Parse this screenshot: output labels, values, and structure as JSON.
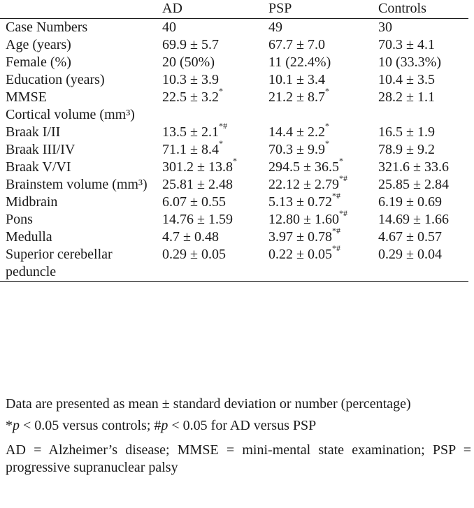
{
  "table": {
    "headers": [
      "",
      "AD",
      "PSP",
      "Controls"
    ],
    "rows": [
      {
        "label": "Case Numbers",
        "ad": "40",
        "ad_sup": "",
        "psp": "49",
        "psp_sup": "",
        "ctrl": "30"
      },
      {
        "label": "Age (years)",
        "ad": "69.9 ± 5.7",
        "ad_sup": "",
        "psp": "67.7 ± 7.0",
        "psp_sup": "",
        "ctrl": "70.3 ± 4.1"
      },
      {
        "label": "Female (%)",
        "ad": "20 (50%)",
        "ad_sup": "",
        "psp": "11 (22.4%)",
        "psp_sup": "",
        "ctrl": "10 (33.3%)"
      },
      {
        "label": "Education (years)",
        "ad": "10.3 ± 3.9",
        "ad_sup": "",
        "psp": "10.1 ± 3.4",
        "psp_sup": "",
        "ctrl": "10.4 ± 3.5"
      },
      {
        "label": "MMSE",
        "ad": "22.5 ± 3.2",
        "ad_sup": "*",
        "psp": "21.2 ± 8.7",
        "psp_sup": "*",
        "ctrl": "28.2 ± 1.1"
      },
      {
        "label": "Cortical volume (mm³)",
        "ad": "",
        "ad_sup": "",
        "psp": "",
        "psp_sup": "",
        "ctrl": ""
      },
      {
        "label": "Braak I/II",
        "ad": "13.5 ± 2.1",
        "ad_sup": "*#",
        "psp": "14.4 ± 2.2",
        "psp_sup": "*",
        "ctrl": "16.5 ± 1.9"
      },
      {
        "label": "Braak III/IV",
        "ad": "71.1 ± 8.4",
        "ad_sup": "*",
        "psp": "70.3 ± 9.9",
        "psp_sup": "*",
        "ctrl": "78.9 ± 9.2"
      },
      {
        "label": "Braak V/VI",
        "ad": "301.2 ± 13.8",
        "ad_sup": "*",
        "psp": "294.5 ± 36.5",
        "psp_sup": "*",
        "ctrl": "321.6 ± 33.6"
      },
      {
        "label": "Brainstem volume (mm³)",
        "ad": "25.81 ± 2.48",
        "ad_sup": "",
        "psp": "22.12 ± 2.79",
        "psp_sup": "*#",
        "ctrl": "25.85 ± 2.84"
      },
      {
        "label": "Midbrain",
        "ad": "6.07 ± 0.55",
        "ad_sup": "",
        "psp": "5.13 ± 0.72",
        "psp_sup": "*#",
        "ctrl": "6.19 ± 0.69"
      },
      {
        "label": "Pons",
        "ad": "14.76 ± 1.59",
        "ad_sup": "",
        "psp": "12.80 ± 1.60",
        "psp_sup": "*#",
        "ctrl": "14.69 ± 1.66"
      },
      {
        "label": "Medulla",
        "ad": "4.7 ± 0.48",
        "ad_sup": "",
        "psp": "3.97 ± 0.78",
        "psp_sup": "*#",
        "ctrl": "4.67 ± 0.57"
      },
      {
        "label": "Superior cerebellar peduncle",
        "ad": "0.29 ± 0.05",
        "ad_sup": "",
        "psp": "0.22 ± 0.05",
        "psp_sup": "*#",
        "ctrl": "0.29 ± 0.04"
      }
    ]
  },
  "notes": {
    "note1": "Data are presented as mean ± standard deviation or number (percentage)",
    "note2_star": "*",
    "note2_p1": "p",
    "note2_mid": " < 0.05 versus controls; #",
    "note2_p2": "p",
    "note2_end": " < 0.05 for AD versus PSP",
    "note3": "AD = Alzheimer’s disease; MMSE = mini-mental state examination; PSP = progressive supranuclear palsy"
  }
}
